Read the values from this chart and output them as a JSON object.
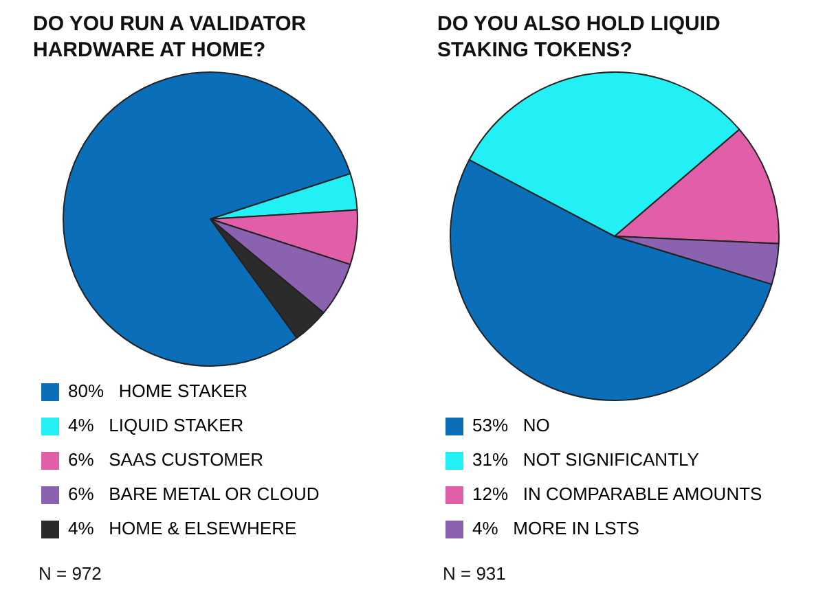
{
  "chart_data": [
    {
      "type": "pie",
      "title": "DO YOU RUN A VALIDATOR HARDWARE AT HOME?",
      "categories": [
        "HOME STAKER",
        "LIQUID STAKER",
        "SAAS CUSTOMER",
        "BARE METAL OR CLOUD",
        "HOME & ELSEWHERE"
      ],
      "values": [
        80,
        4,
        6,
        6,
        4
      ],
      "value_labels": [
        "80%",
        "4%",
        "6%",
        "6%",
        "4%"
      ],
      "colors": [
        "#0a6fb8",
        "#22f0f4",
        "#e05fa8",
        "#8b62b0",
        "#2b2b2b"
      ],
      "legend": "bottom",
      "annotations": [
        "N = 972"
      ]
    },
    {
      "type": "pie",
      "title": "DO YOU ALSO HOLD LIQUID STAKING TOKENS?",
      "categories": [
        "NO",
        "NOT SIGNIFICANTLY",
        "IN COMPARABLE AMOUNTS",
        "MORE IN LSTS"
      ],
      "values": [
        53,
        31,
        12,
        4
      ],
      "value_labels": [
        "53%",
        "31%",
        "12%",
        "4%"
      ],
      "colors": [
        "#0a6fb8",
        "#22f0f4",
        "#e05fa8",
        "#8b62b0"
      ],
      "legend": "bottom",
      "annotations": [
        "N = 931"
      ]
    }
  ]
}
